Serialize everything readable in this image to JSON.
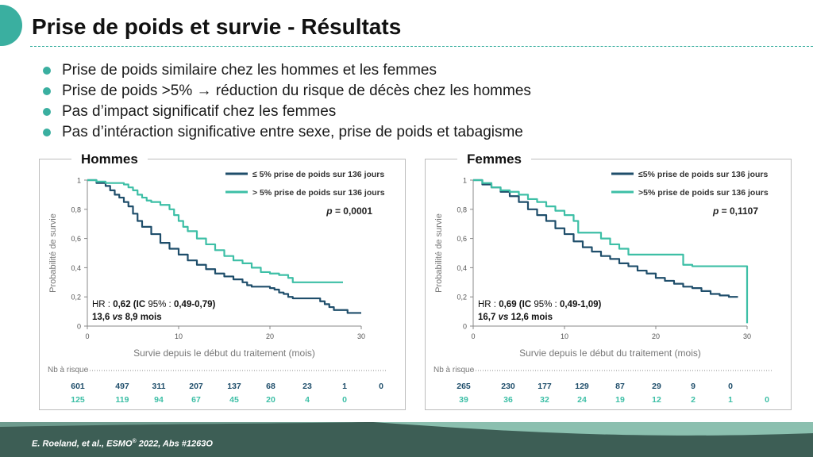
{
  "title": "Prise de poids et survie - Résultats",
  "bullets": [
    "Prise de poids similaire chez les hommes et les femmes",
    "Prise de poids >5% → réduction du risque de décès chez les hommes",
    "Pas d’impact significatif chez les femmes",
    "Pas d’intéraction significative entre sexe, prise de poids et tabagisme"
  ],
  "colors": {
    "accent": "#3aafa0",
    "dark_series": "#1f4e6b",
    "light_series": "#3dbfa6"
  },
  "citation": {
    "text": "E. Roeland, et al., ESMO",
    "sup": "®",
    "rest": " 2022, Abs #1263O"
  },
  "chart_data": [
    {
      "type": "line",
      "panel_title": "Hommes",
      "xlabel": "Survie depuis le début du traitement (mois)",
      "ylabel": "Probabilité de survie",
      "xlim": [
        0,
        30
      ],
      "ylim": [
        0,
        1
      ],
      "xticks": [
        "0",
        "10",
        "20",
        "30"
      ],
      "yticks": [
        "0",
        "0,2",
        "0,4",
        "0,6",
        "0,8",
        "1"
      ],
      "pvalue_label": "p",
      "pvalue": "= 0,0001",
      "stats": {
        "hr_prefix": "HR : ",
        "hr_value": "0,62",
        "ic_label": " (IC ",
        "ic_pct": "95%",
        "ic_sep": " : ",
        "ic_value": "0,49-0,79)",
        "median_a": "13,6 ",
        "vs": "vs",
        "median_b": " 8,9 mois"
      },
      "risk_label": "Nb à risque",
      "series": [
        {
          "name": "≤ 5% prise de poids sur 136 jours",
          "color": "#1f4e6b",
          "points": [
            [
              0,
              1
            ],
            [
              1,
              0.98
            ],
            [
              2,
              0.96
            ],
            [
              2.5,
              0.93
            ],
            [
              3,
              0.9
            ],
            [
              3.5,
              0.88
            ],
            [
              4,
              0.85
            ],
            [
              4.5,
              0.82
            ],
            [
              5,
              0.77
            ],
            [
              5.5,
              0.72
            ],
            [
              6,
              0.68
            ],
            [
              7,
              0.63
            ],
            [
              8,
              0.57
            ],
            [
              9,
              0.53
            ],
            [
              10,
              0.49
            ],
            [
              11,
              0.45
            ],
            [
              12,
              0.42
            ],
            [
              13,
              0.39
            ],
            [
              14,
              0.36
            ],
            [
              15,
              0.34
            ],
            [
              16,
              0.32
            ],
            [
              17,
              0.3
            ],
            [
              17.5,
              0.28
            ],
            [
              18,
              0.27
            ],
            [
              19,
              0.27
            ],
            [
              20,
              0.26
            ],
            [
              20.5,
              0.25
            ],
            [
              21,
              0.23
            ],
            [
              21.5,
              0.22
            ],
            [
              22,
              0.2
            ],
            [
              22.5,
              0.19
            ],
            [
              23,
              0.19
            ],
            [
              24,
              0.19
            ],
            [
              25,
              0.19
            ],
            [
              25.5,
              0.17
            ],
            [
              26,
              0.15
            ],
            [
              26.5,
              0.13
            ],
            [
              27,
              0.11
            ],
            [
              28,
              0.11
            ],
            [
              28.5,
              0.09
            ],
            [
              29,
              0.09
            ],
            [
              30,
              0.09
            ]
          ],
          "at_risk": [
            "601",
            "497",
            "311",
            "207",
            "137",
            "68",
            "23",
            "1",
            "0"
          ]
        },
        {
          "name": "> 5% prise de poids sur 136 jours",
          "color": "#3dbfa6",
          "points": [
            [
              0,
              1
            ],
            [
              1,
              0.99
            ],
            [
              2,
              0.98
            ],
            [
              3,
              0.98
            ],
            [
              4,
              0.97
            ],
            [
              4.5,
              0.95
            ],
            [
              5,
              0.93
            ],
            [
              5.5,
              0.9
            ],
            [
              6,
              0.88
            ],
            [
              6.5,
              0.86
            ],
            [
              7,
              0.85
            ],
            [
              8,
              0.83
            ],
            [
              9,
              0.8
            ],
            [
              9.5,
              0.76
            ],
            [
              10,
              0.72
            ],
            [
              10.5,
              0.68
            ],
            [
              11,
              0.65
            ],
            [
              12,
              0.6
            ],
            [
              13,
              0.56
            ],
            [
              14,
              0.52
            ],
            [
              15,
              0.48
            ],
            [
              16,
              0.45
            ],
            [
              17,
              0.43
            ],
            [
              18,
              0.4
            ],
            [
              19,
              0.37
            ],
            [
              20,
              0.36
            ],
            [
              21,
              0.35
            ],
            [
              22,
              0.33
            ],
            [
              22.5,
              0.3
            ],
            [
              24,
              0.3
            ],
            [
              25,
              0.3
            ],
            [
              26,
              0.3
            ],
            [
              27,
              0.3
            ],
            [
              28,
              0.3
            ]
          ],
          "at_risk": [
            "125",
            "119",
            "94",
            "67",
            "45",
            "20",
            "4",
            "0"
          ]
        }
      ]
    },
    {
      "type": "line",
      "panel_title": "Femmes",
      "xlabel": "Survie depuis le début du traitement (mois)",
      "ylabel": "Probabilité de survie",
      "xlim": [
        0,
        30
      ],
      "ylim": [
        0,
        1
      ],
      "xticks": [
        "0",
        "10",
        "20",
        "30"
      ],
      "yticks": [
        "0",
        "0,2",
        "0,4",
        "0,6",
        "0,8",
        "1"
      ],
      "pvalue_label": "p",
      "pvalue": "= 0,1107",
      "stats": {
        "hr_prefix": "HR : ",
        "hr_value": "0,69",
        "ic_label": " (IC ",
        "ic_pct": "95%",
        "ic_sep": " : ",
        "ic_value": "0,49-1,09)",
        "median_a": "16,7 ",
        "vs": "vs",
        "median_b": " 12,6 mois"
      },
      "risk_label": "Nb à risque",
      "series": [
        {
          "name": "≤5% prise de poids sur 136 jours",
          "color": "#1f4e6b",
          "points": [
            [
              0,
              1
            ],
            [
              1,
              0.97
            ],
            [
              2,
              0.95
            ],
            [
              3,
              0.92
            ],
            [
              4,
              0.89
            ],
            [
              5,
              0.85
            ],
            [
              6,
              0.8
            ],
            [
              7,
              0.76
            ],
            [
              8,
              0.72
            ],
            [
              9,
              0.67
            ],
            [
              10,
              0.63
            ],
            [
              11,
              0.58
            ],
            [
              12,
              0.54
            ],
            [
              13,
              0.51
            ],
            [
              14,
              0.48
            ],
            [
              15,
              0.46
            ],
            [
              16,
              0.43
            ],
            [
              17,
              0.41
            ],
            [
              18,
              0.38
            ],
            [
              19,
              0.36
            ],
            [
              20,
              0.33
            ],
            [
              21,
              0.31
            ],
            [
              22,
              0.29
            ],
            [
              23,
              0.27
            ],
            [
              24,
              0.26
            ],
            [
              25,
              0.24
            ],
            [
              26,
              0.22
            ],
            [
              27,
              0.21
            ],
            [
              28,
              0.2
            ],
            [
              29,
              0.2
            ]
          ],
          "at_risk": [
            "265",
            "230",
            "177",
            "129",
            "87",
            "29",
            "9",
            "0"
          ]
        },
        {
          "name": ">5% prise de poids sur 136 jours",
          "color": "#3dbfa6",
          "points": [
            [
              0,
              1
            ],
            [
              1,
              0.98
            ],
            [
              2,
              0.95
            ],
            [
              3,
              0.93
            ],
            [
              4,
              0.92
            ],
            [
              5,
              0.9
            ],
            [
              6,
              0.87
            ],
            [
              7,
              0.85
            ],
            [
              8,
              0.82
            ],
            [
              9,
              0.79
            ],
            [
              10,
              0.76
            ],
            [
              11,
              0.72
            ],
            [
              11.5,
              0.64
            ],
            [
              13,
              0.64
            ],
            [
              14,
              0.6
            ],
            [
              15,
              0.56
            ],
            [
              16,
              0.53
            ],
            [
              17,
              0.49
            ],
            [
              18,
              0.49
            ],
            [
              20,
              0.49
            ],
            [
              22,
              0.49
            ],
            [
              23,
              0.42
            ],
            [
              24,
              0.41
            ],
            [
              26,
              0.41
            ],
            [
              28,
              0.41
            ],
            [
              29,
              0.41
            ],
            [
              30,
              0.41
            ],
            [
              30,
              0.02
            ]
          ],
          "at_risk": [
            "39",
            "36",
            "32",
            "24",
            "19",
            "12",
            "2",
            "1",
            "0"
          ]
        }
      ]
    }
  ]
}
